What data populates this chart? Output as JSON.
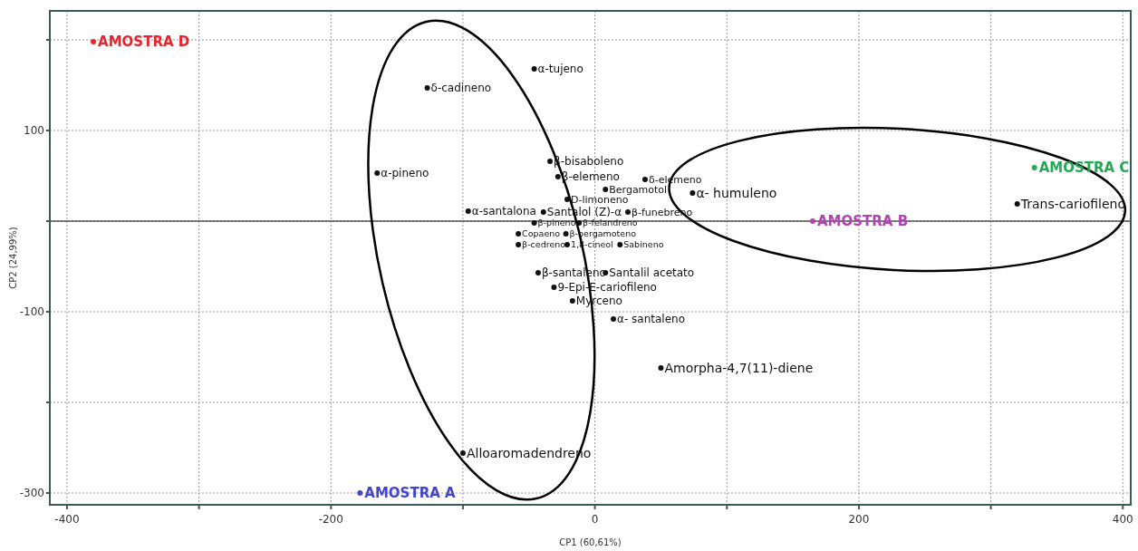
{
  "chart_data": {
    "type": "scatter",
    "xlabel": "CP1 (60,61%)",
    "ylabel": "CP2 (24,99%)",
    "xlim": [
      -413,
      406
    ],
    "ylim": [
      -313,
      232
    ],
    "xticks": [
      -400,
      {
        "value": -300,
        "label": null
      },
      -200,
      {
        "value": -100,
        "label": null
      },
      0,
      {
        "value": 100,
        "label": null
      },
      200,
      {
        "value": 300,
        "label": null
      },
      400
    ],
    "yticks": [
      -300,
      {
        "value": -200,
        "label": null
      },
      -100,
      {
        "value": 0,
        "label": null
      },
      100,
      {
        "value": 200,
        "label": null
      }
    ],
    "grid": true,
    "marker": "circle",
    "ref_lines": [
      {
        "axis": "y",
        "value": 0,
        "color": "#555555"
      }
    ],
    "annotations": [
      {
        "text": "α-tujeno",
        "x": -46,
        "y": 168
      },
      {
        "text": "δ-cadineno",
        "x": -127,
        "y": 147
      },
      {
        "text": "α-pineno",
        "x": -165,
        "y": 53
      },
      {
        "text": "β-bisaboleno",
        "x": -34,
        "y": 66
      },
      {
        "text": "β-elemeno",
        "x": -28,
        "y": 49
      },
      {
        "text": "δ-elemeno",
        "x": 38,
        "y": 46
      },
      {
        "text": "Bergamotol",
        "x": 8,
        "y": 35
      },
      {
        "text": "D-limoneno",
        "x": -21,
        "y": 24
      },
      {
        "text": "α- humuleno",
        "x": 74,
        "y": 31
      },
      {
        "text": "Trans-cariofileno",
        "x": 320,
        "y": 19
      },
      {
        "text": "α-santalona",
        "x": -96,
        "y": 11
      },
      {
        "text": "Santalol (Z)-α",
        "x": -39,
        "y": 10
      },
      {
        "text": "β-funebreno",
        "x": 25,
        "y": 10
      },
      {
        "text": "β-pineno",
        "x": -46,
        "y": -2
      },
      {
        "text": "β-felandreno",
        "x": -12,
        "y": -2
      },
      {
        "text": "Copaeno",
        "x": -58,
        "y": -14
      },
      {
        "text": "β-bergamoteno",
        "x": -22,
        "y": -14
      },
      {
        "text": "β-cedreno",
        "x": -58,
        "y": -26
      },
      {
        "text": "1,8-cineol",
        "x": -21,
        "y": -26
      },
      {
        "text": "Sabineno",
        "x": 19,
        "y": -26
      },
      {
        "text": "β-santaleno",
        "x": -43,
        "y": -57
      },
      {
        "text": "Santalil acetato",
        "x": 8,
        "y": -57
      },
      {
        "text": "9-Epi-E-cariofileno",
        "x": -31,
        "y": -73
      },
      {
        "text": "Myrceno",
        "x": -17,
        "y": -88
      },
      {
        "text": "α- santaleno",
        "x": 14,
        "y": -108
      },
      {
        "text": "Amorpha-4,7(11)-diene",
        "x": 50,
        "y": -162
      },
      {
        "text": "Alloaromadendreno",
        "x": -100,
        "y": -256
      }
    ],
    "series": [
      {
        "color": "#111111",
        "x": [
          -46,
          -127,
          -165,
          -34,
          -28,
          38,
          8,
          -21,
          74,
          320,
          -96,
          -39,
          25,
          -46,
          -12,
          -58,
          -22,
          -58,
          -21,
          19,
          -43,
          8,
          -31,
          -17,
          14,
          50,
          -100
        ],
        "values": [
          168,
          147,
          53,
          66,
          49,
          46,
          35,
          24,
          31,
          19,
          11,
          10,
          10,
          -2,
          -2,
          -14,
          -14,
          -26,
          -26,
          -26,
          -57,
          -57,
          -73,
          -88,
          -108,
          -162,
          -256
        ]
      },
      {
        "x": [
          -178,
          165,
          333,
          -380
        ],
        "values": [
          -300,
          0,
          59,
          198
        ],
        "value_labels": [
          "AMOSTRA A",
          "AMOSTRA B",
          "AMOSTRA C",
          "AMOSTRA D"
        ],
        "colors": [
          "#4444cc",
          "#b044b0",
          "#22aa55",
          "#e8242c"
        ]
      }
    ]
  }
}
